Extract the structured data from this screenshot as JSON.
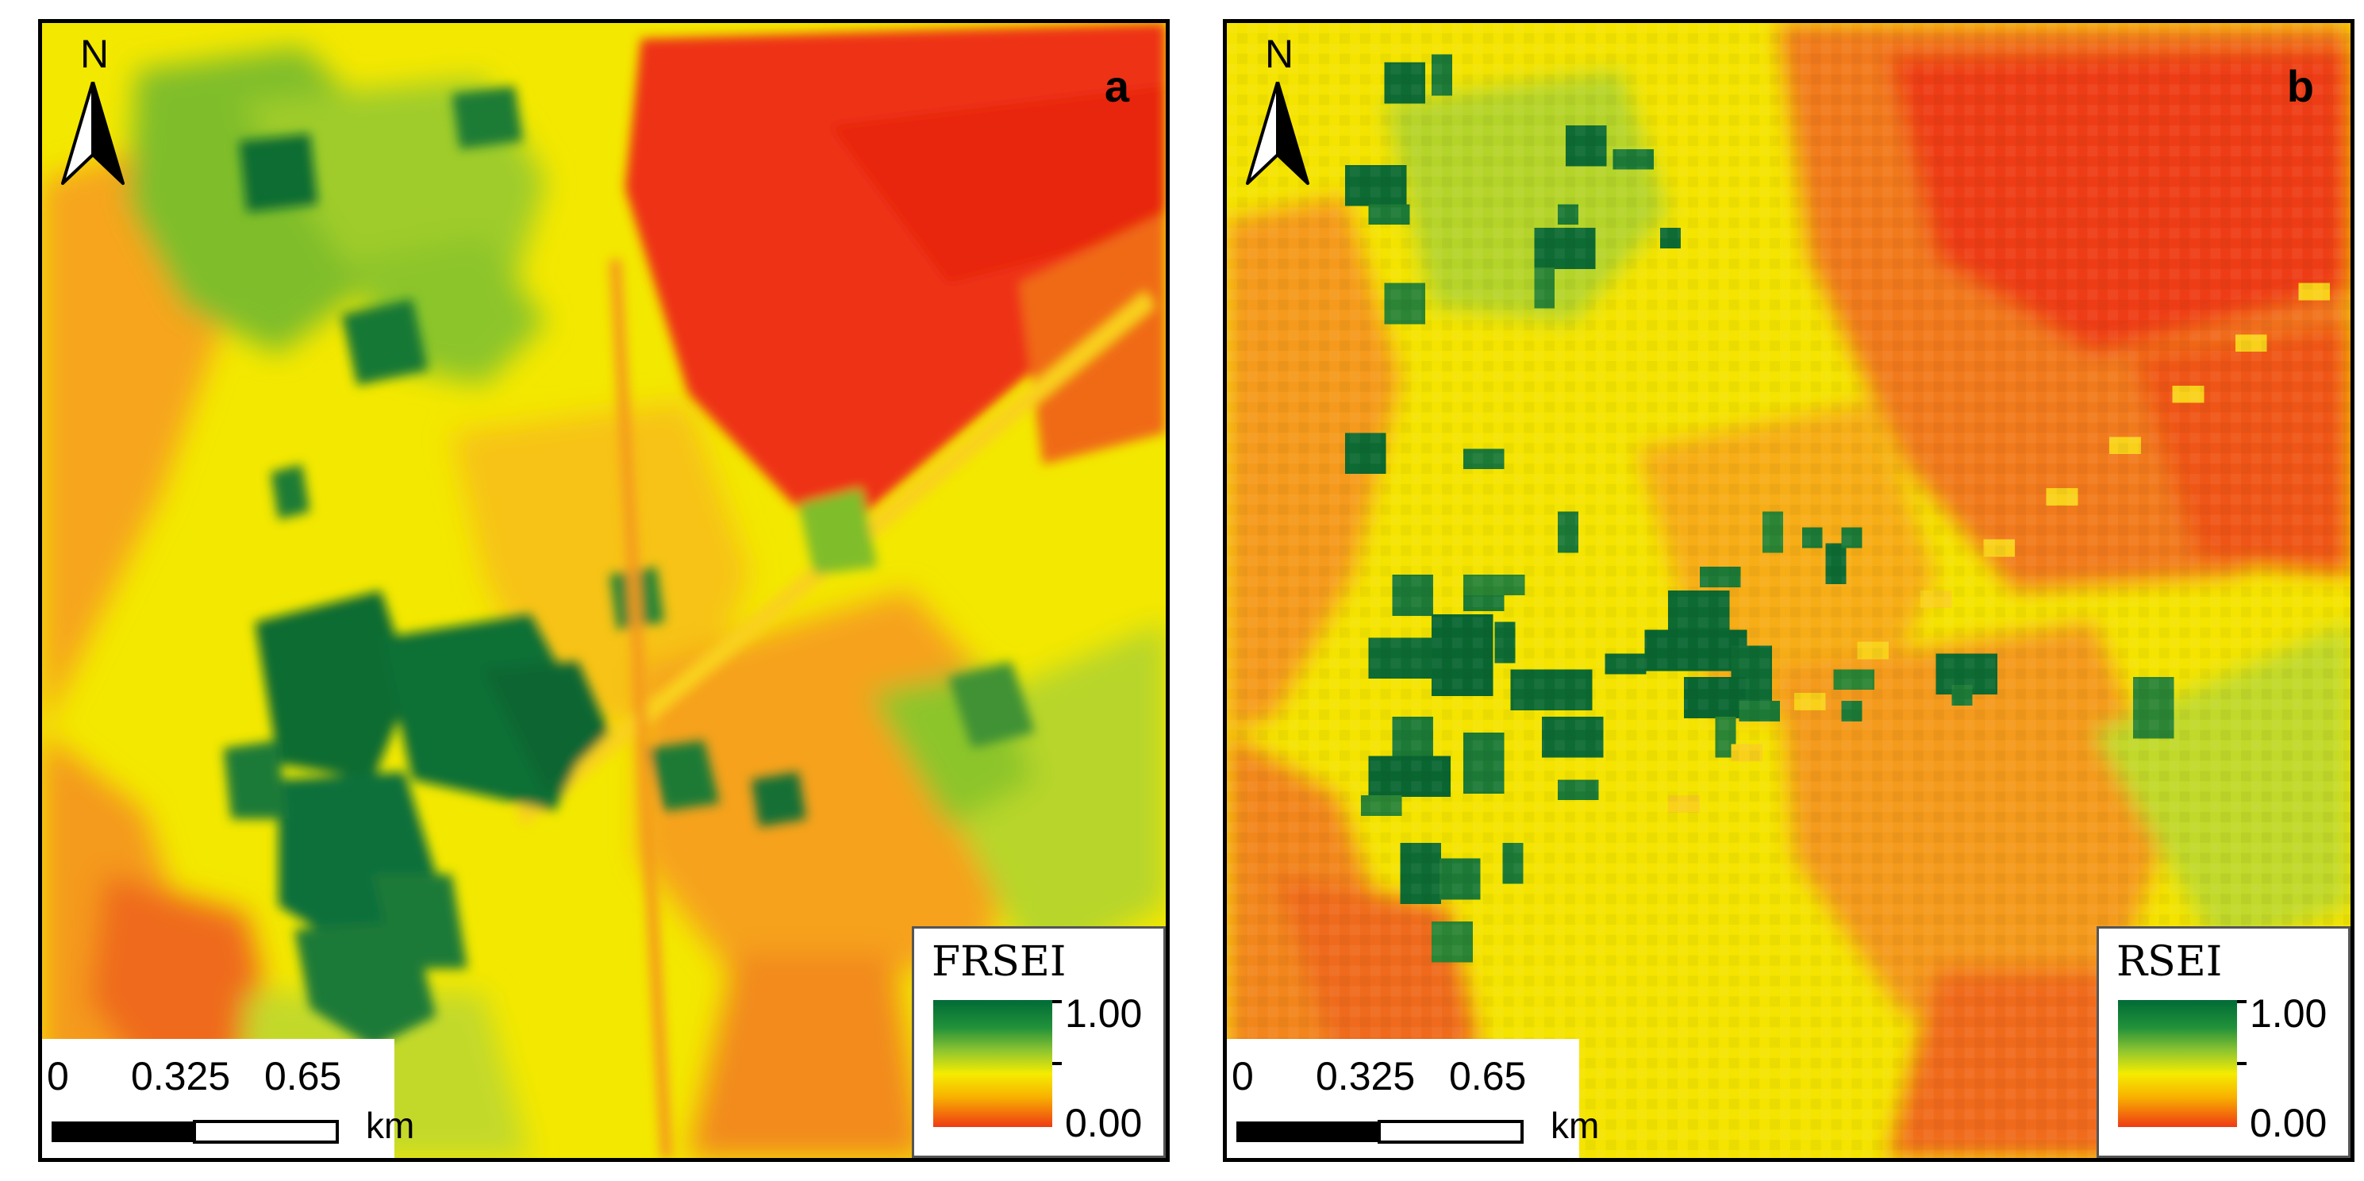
{
  "panels": [
    {
      "letter": "a",
      "north_label": "N",
      "legend": {
        "title": "FRSEI",
        "max": "1.00",
        "min": "0.00"
      },
      "scalebar": {
        "ticks": [
          "0",
          "0.325",
          "0.65"
        ],
        "unit": "km"
      }
    },
    {
      "letter": "b",
      "north_label": "N",
      "legend": {
        "title": "RSEI",
        "max": "1.00",
        "min": "0.00"
      },
      "scalebar": {
        "ticks": [
          "0",
          "0.325",
          "0.65"
        ],
        "unit": "km"
      }
    }
  ],
  "colors": {
    "high": "#006b36",
    "mid_high": "#8fc531",
    "mid": "#f5ec00",
    "mid_low": "#f8b300",
    "low": "#ef3a14"
  }
}
